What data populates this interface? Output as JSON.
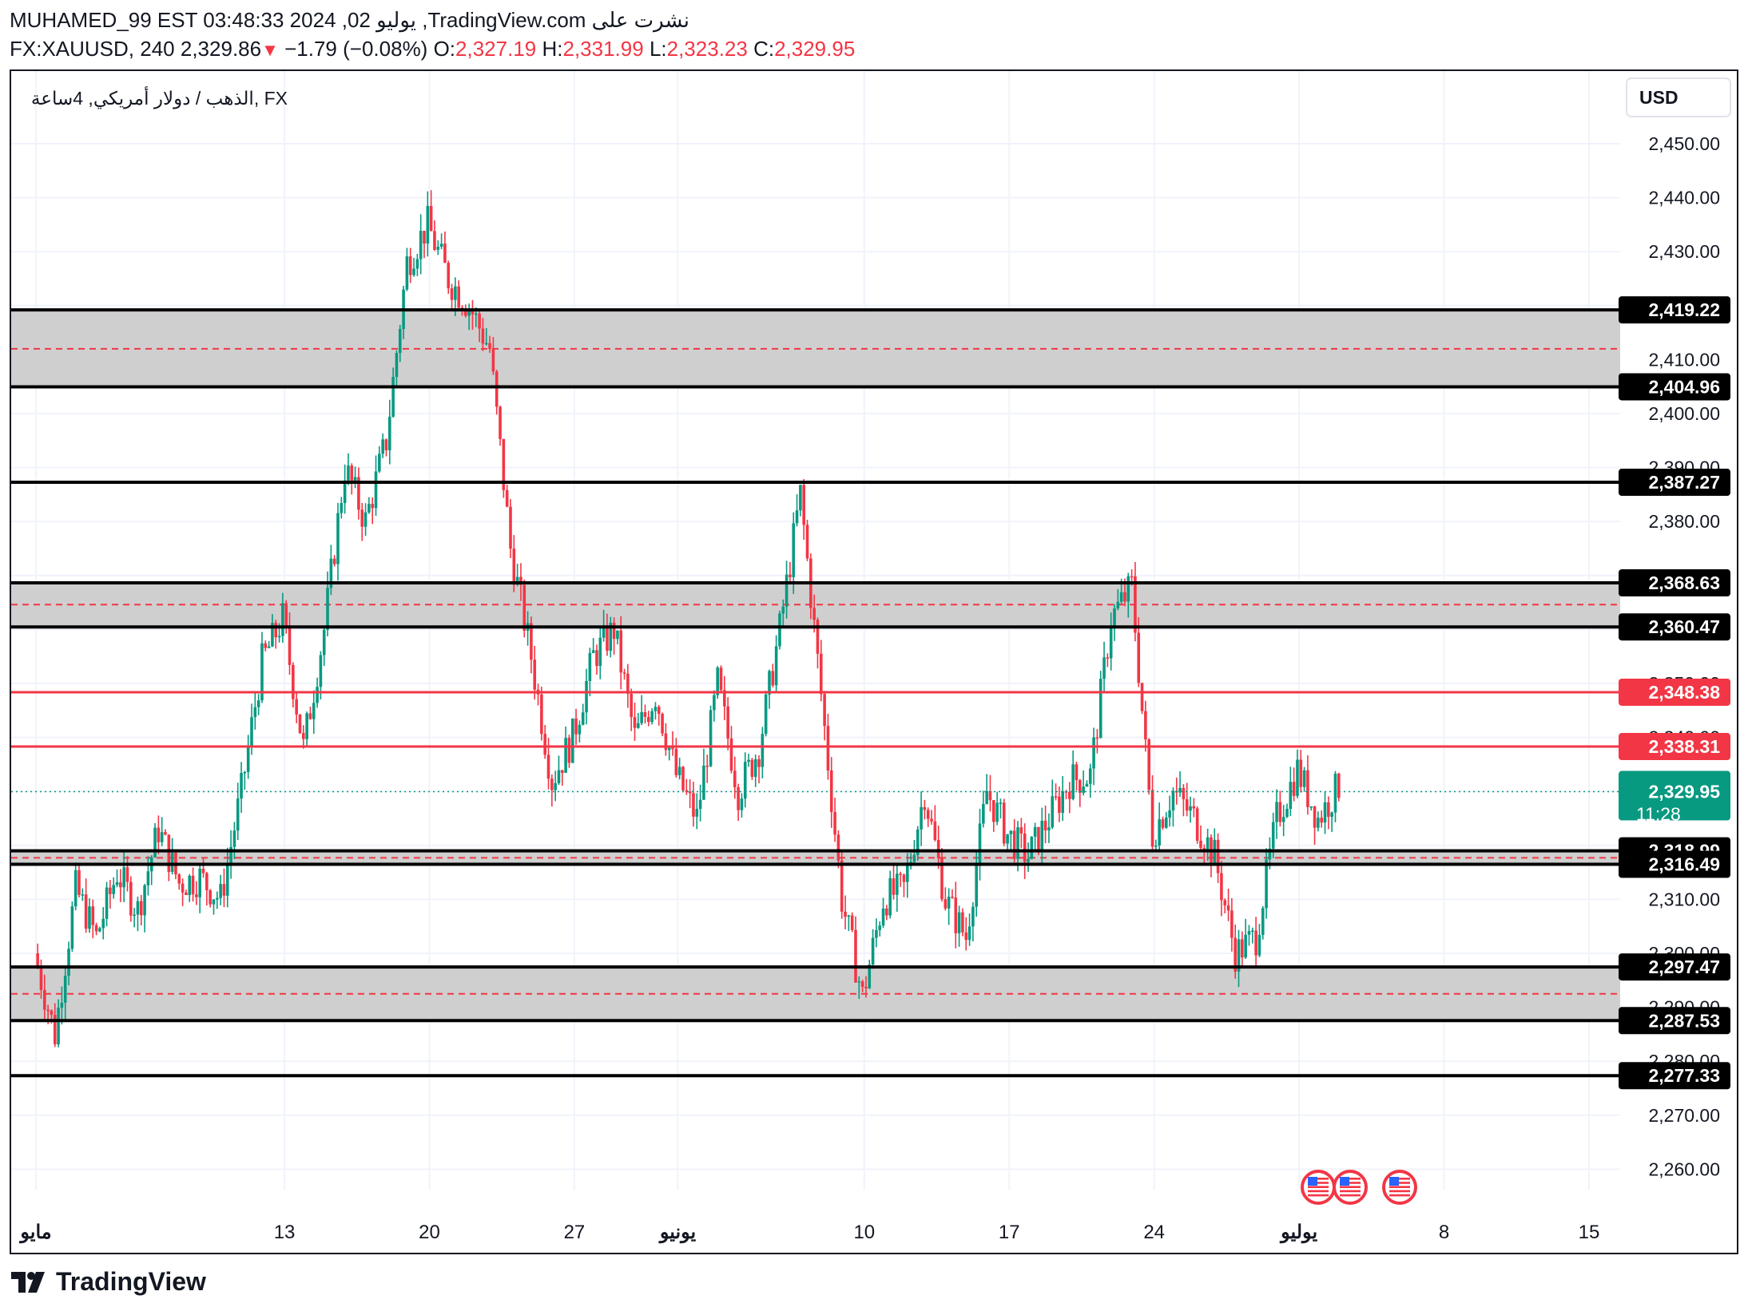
{
  "header": {
    "line1": "MUHAMED_99 EST 03:48:33 2024 ,02 يوليو ,TradingView.com نشرت على",
    "symbol": "FX:XAUUSD, 240",
    "last": "2,329.86",
    "arrow": "▼",
    "change": "−1.79 (−0.08%)",
    "o_label": "O:",
    "o_value": "2,327.19",
    "h_label": "H:",
    "h_value": "2,331.99",
    "l_label": "L:",
    "l_value": "2,323.23",
    "c_label": "C:",
    "c_value": "2,329.95"
  },
  "legend_title": "الذهب / دولار أمريكي, 4ساعة, FX",
  "currency": "USD",
  "brand": "TradingView",
  "colors": {
    "up": "#089981",
    "down": "#f23645",
    "zone_fill": "#cfcfcf",
    "level_line": "#000000",
    "red_line": "#f23645",
    "price_tag": "#089981"
  },
  "chart_data": {
    "type": "candlestick",
    "ylim": [
      2252,
      2457
    ],
    "y_ticks": [
      2260,
      2270,
      2280,
      2290,
      2300,
      2310,
      2320,
      2330,
      2340,
      2350,
      2360,
      2370,
      2380,
      2390,
      2400,
      2410,
      2420,
      2430,
      2440,
      2450
    ],
    "x_ticks": [
      {
        "label": "مايو",
        "day": 0,
        "bold": true
      },
      {
        "label": "13",
        "day": 12,
        "bold": false
      },
      {
        "label": "20",
        "day": 19,
        "bold": false
      },
      {
        "label": "27",
        "day": 26,
        "bold": false
      },
      {
        "label": "يونيو",
        "day": 31,
        "bold": true
      },
      {
        "label": "10",
        "day": 40,
        "bold": false
      },
      {
        "label": "17",
        "day": 47,
        "bold": false
      },
      {
        "label": "24",
        "day": 54,
        "bold": false
      },
      {
        "label": "يوليو",
        "day": 61,
        "bold": true
      },
      {
        "label": "8",
        "day": 68,
        "bold": false
      },
      {
        "label": "15",
        "day": 75,
        "bold": false
      }
    ],
    "zones": [
      {
        "top": 2419.22,
        "bottom": 2404.96,
        "mid": 2412.0
      },
      {
        "top": 2368.63,
        "bottom": 2360.47,
        "mid": 2364.6
      },
      {
        "top": 2318.99,
        "bottom": 2316.49,
        "mid": 2317.7
      },
      {
        "top": 2297.47,
        "bottom": 2287.53,
        "mid": 2292.5
      }
    ],
    "black_levels": [
      2419.22,
      2404.96,
      2387.27,
      2368.63,
      2360.47,
      2318.99,
      2316.49,
      2297.47,
      2287.53,
      2277.33
    ],
    "red_levels": [
      2348.38,
      2338.31
    ],
    "level_labels": [
      "2,419.22",
      "2,404.96",
      "2,387.27",
      "2,368.63",
      "2,360.47",
      "2,318.99",
      "2,316.49",
      "2,297.47",
      "2,287.53",
      "2,277.33"
    ],
    "red_labels": [
      "2,348.38",
      "2,338.31"
    ],
    "current_price": 2329.95,
    "current_label": "2,329.95",
    "countdown": "11:28",
    "anchors": [
      [
        0,
        2300
      ],
      [
        1,
        2285
      ],
      [
        2,
        2312
      ],
      [
        3,
        2303
      ],
      [
        4,
        2315
      ],
      [
        5,
        2308
      ],
      [
        6,
        2323
      ],
      [
        7,
        2313
      ],
      [
        8,
        2314
      ],
      [
        9,
        2310
      ],
      [
        10,
        2330
      ],
      [
        11,
        2354
      ],
      [
        12,
        2362
      ],
      [
        13,
        2338
      ],
      [
        14,
        2360
      ],
      [
        15,
        2390
      ],
      [
        16,
        2380
      ],
      [
        17,
        2395
      ],
      [
        18,
        2428
      ],
      [
        19,
        2435
      ],
      [
        20,
        2425
      ],
      [
        21,
        2420
      ],
      [
        22,
        2412
      ],
      [
        23,
        2375
      ],
      [
        24,
        2355
      ],
      [
        25,
        2332
      ],
      [
        26,
        2340
      ],
      [
        27,
        2355
      ],
      [
        28,
        2360
      ],
      [
        29,
        2340
      ],
      [
        30,
        2348
      ],
      [
        31,
        2333
      ],
      [
        32,
        2325
      ],
      [
        33,
        2350
      ],
      [
        34,
        2330
      ],
      [
        35,
        2338
      ],
      [
        36,
        2360
      ],
      [
        37,
        2385
      ],
      [
        38,
        2348
      ],
      [
        39,
        2310
      ],
      [
        40,
        2292
      ],
      [
        41,
        2310
      ],
      [
        42,
        2312
      ],
      [
        43,
        2330
      ],
      [
        44,
        2310
      ],
      [
        45,
        2303
      ],
      [
        46,
        2330
      ],
      [
        47,
        2322
      ],
      [
        48,
        2318
      ],
      [
        49,
        2325
      ],
      [
        50,
        2332
      ],
      [
        51,
        2333
      ],
      [
        52,
        2362
      ],
      [
        53,
        2368
      ],
      [
        54,
        2322
      ],
      [
        55,
        2330
      ],
      [
        56,
        2325
      ],
      [
        57,
        2318
      ],
      [
        58,
        2300
      ],
      [
        59,
        2303
      ],
      [
        60,
        2325
      ],
      [
        61,
        2334
      ],
      [
        62,
        2325
      ],
      [
        63,
        2331
      ]
    ]
  }
}
